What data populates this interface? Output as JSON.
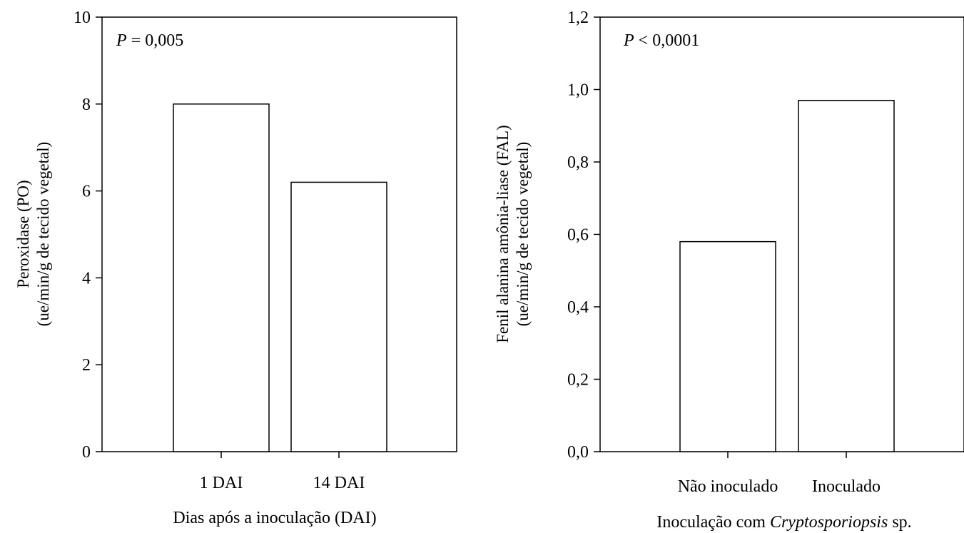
{
  "chart_data": [
    {
      "type": "bar",
      "annotation_prefix": "P",
      "annotation_rest": " = 0,005",
      "categories": [
        "1 DAI",
        "14 DAI"
      ],
      "values": [
        8.0,
        6.2
      ],
      "ylim": [
        0,
        10
      ],
      "yticks": [
        0,
        2,
        4,
        6,
        8,
        10
      ],
      "ytick_labels": [
        "0",
        "2",
        "4",
        "6",
        "8",
        "10"
      ],
      "xlabel": "Dias após a inoculação (DAI)",
      "ylabel_line1": "Peroxidase (PO)",
      "ylabel_line2": "(ue/min/g de tecido vegetal)",
      "grid": false,
      "bar_fill": "#ffffff",
      "bar_stroke": "#000000"
    },
    {
      "type": "bar",
      "annotation_prefix": "P",
      "annotation_rest": " < 0,0001",
      "categories": [
        "Não inoculado",
        "Inoculado"
      ],
      "values": [
        0.58,
        0.97
      ],
      "ylim": [
        0,
        1.2
      ],
      "yticks": [
        0,
        0.2,
        0.4,
        0.6,
        0.8,
        1.0,
        1.2
      ],
      "ytick_labels": [
        "0,0",
        "0,2",
        "0,4",
        "0,6",
        "0,8",
        "1,0",
        "1,2"
      ],
      "xlabel_prefix": "Inoculação com ",
      "xlabel_italic": "Cryptosporiopsis",
      "xlabel_suffix": " sp.",
      "ylabel_line1": "Fenil alanina amônia-liase (FAL)",
      "ylabel_line2": "(ue/min/g de tecido vegetal)",
      "grid": false,
      "bar_fill": "#ffffff",
      "bar_stroke": "#000000"
    }
  ]
}
